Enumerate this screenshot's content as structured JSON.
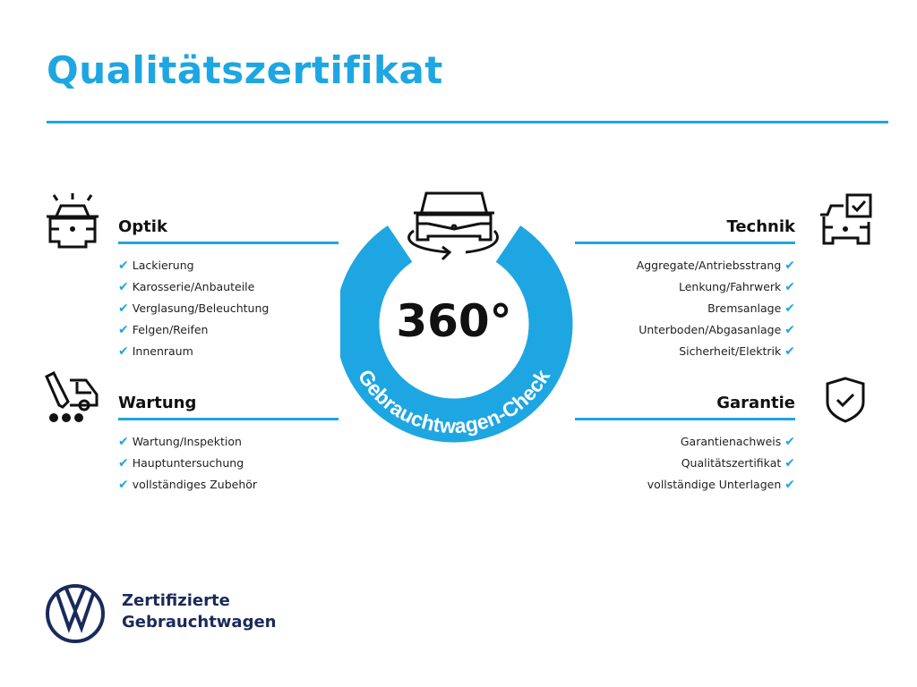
{
  "title": "Qualitätszertifikat",
  "accent_color": "#1ea6e2",
  "badge": {
    "value": "360°",
    "label": "Gebrauchtwagen-Check",
    "icon": "car-rotate-icon"
  },
  "sections": {
    "optik": {
      "title": "Optik",
      "icon": "car-lights-icon",
      "items": [
        "Lackierung",
        "Karosserie/Anbauteile",
        "Verglasung/Beleuchtung",
        "Felgen/Reifen",
        "Innenraum"
      ]
    },
    "wartung": {
      "title": "Wartung",
      "icon": "service-car-icon",
      "items": [
        "Wartung/Inspektion",
        "Hauptuntersuchung",
        "vollständiges Zubehör"
      ]
    },
    "technik": {
      "title": "Technik",
      "icon": "car-checkbox-icon",
      "items": [
        "Aggregate/Antriebsstrang",
        "Lenkung/Fahrwerk",
        "Bremsanlage",
        "Unterboden/Abgasanlage",
        "Sicherheit/Elektrik"
      ]
    },
    "garantie": {
      "title": "Garantie",
      "icon": "shield-check-icon",
      "items": [
        "Garantienachweis",
        "Qualitätszertifikat",
        "vollständige Unterlagen"
      ]
    }
  },
  "check_mark": "✔",
  "footer": {
    "line1": "Zertifizierte",
    "line2": "Gebrauchtwagen",
    "logo": "vw-logo",
    "logo_color": "#1a2a5a"
  }
}
